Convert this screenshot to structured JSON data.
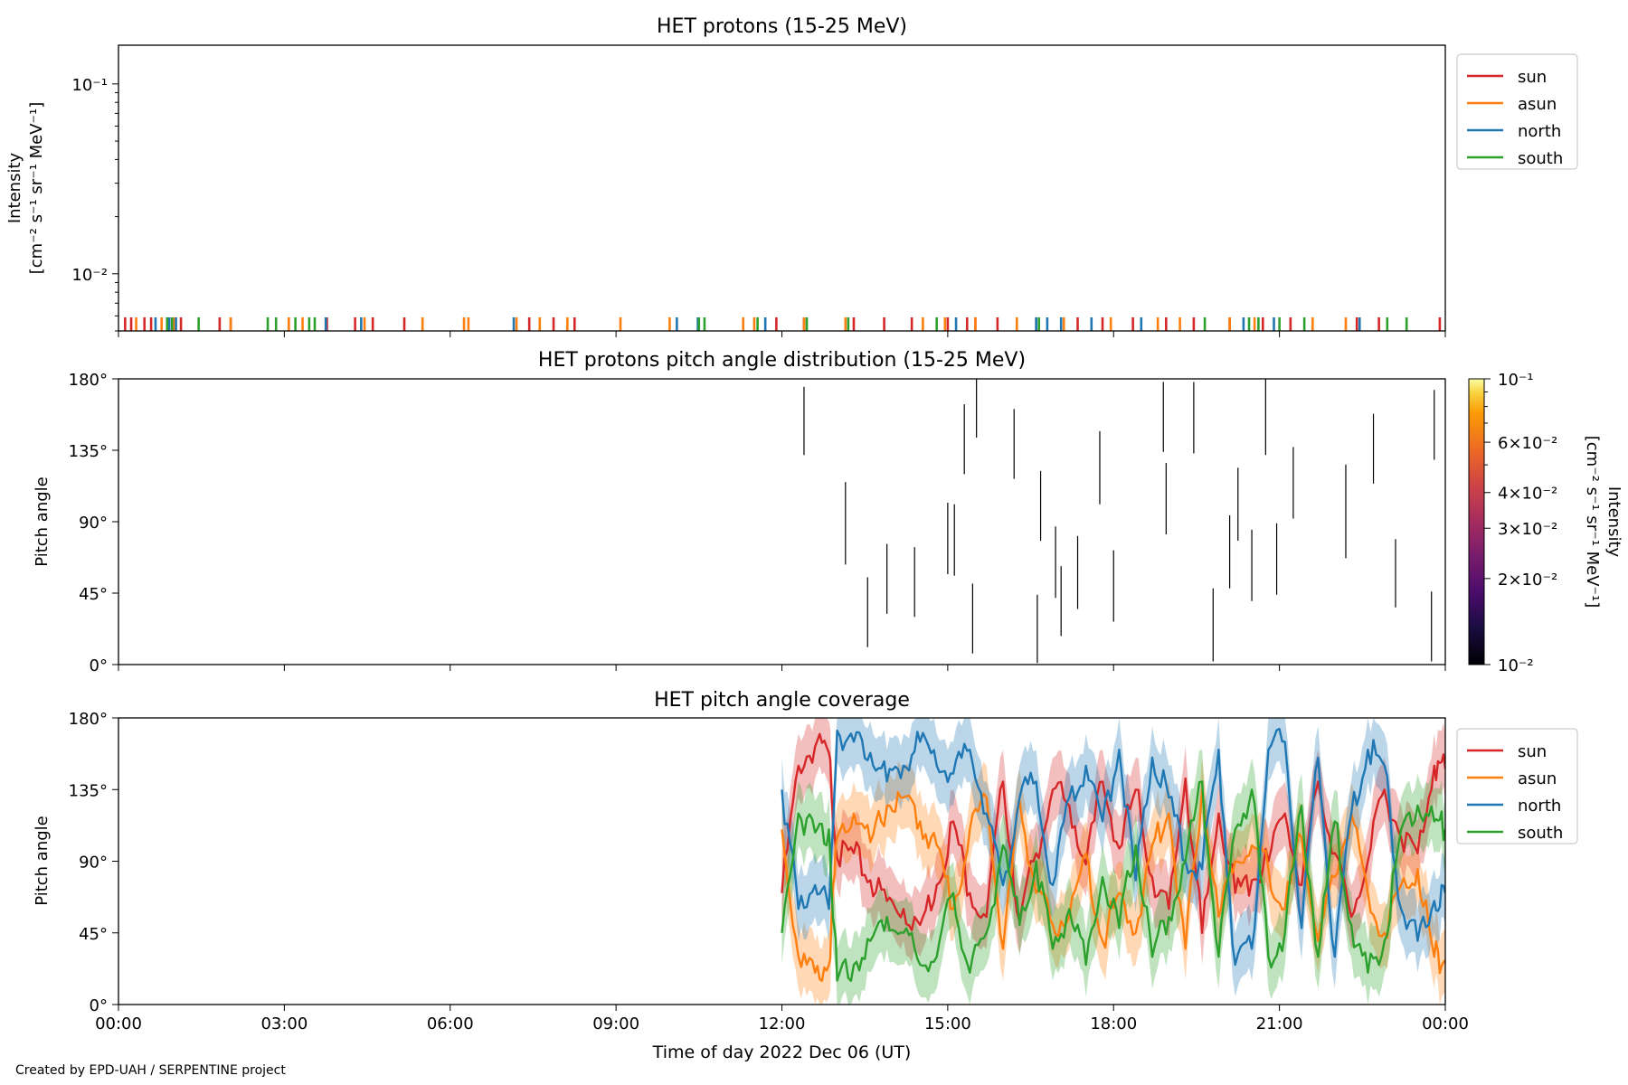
{
  "footer": "Created by EPD-UAH / SERPENTINE project",
  "colors": {
    "sun": "#d62728",
    "asun": "#ff7f0e",
    "north": "#1f77b4",
    "south": "#2ca02c"
  },
  "x_axis": {
    "label": "Time of day 2022 Dec 06 (UT)",
    "ticks": [
      "00:00",
      "03:00",
      "06:00",
      "09:00",
      "12:00",
      "15:00",
      "18:00",
      "21:00",
      "00:00"
    ]
  },
  "chart_data": [
    {
      "type": "line",
      "title": "HET protons (15-25 MeV)",
      "ylabel": "Intensity",
      "yunit": "[cm⁻² s⁻¹ sr⁻¹ MeV⁻¹]",
      "yscale": "log",
      "ylim": [
        0.005,
        0.16
      ],
      "yticks": [
        {
          "label": "10⁻²",
          "value": 0.01
        },
        {
          "label": "10⁻¹",
          "value": 0.1
        }
      ],
      "xlim_hours": [
        0,
        24
      ],
      "legend": {
        "placement": "outside-right-top",
        "entries": [
          "sun",
          "asun",
          "north",
          "south"
        ]
      },
      "note_detail": "Only sparse single-count spikes at the lower edge of the axis",
      "series": [
        {
          "name": "sun",
          "spikes_hours": [
            0.12,
            0.23,
            0.47,
            0.59,
            1.13,
            1.83,
            2.03,
            3.08,
            3.77,
            4.28,
            4.6,
            5.17,
            7.43,
            7.87,
            8.25,
            11.9,
            12.4,
            13.3,
            13.85,
            14.35,
            15.0,
            15.35,
            15.5,
            15.9,
            16.6,
            17.35,
            17.8,
            18.35,
            18.95,
            19.45,
            20.1,
            20.7,
            21.2,
            22.4,
            22.8,
            23.9
          ]
        },
        {
          "name": "asun",
          "spikes_hours": [
            0.32,
            0.78,
            1.0,
            2.03,
            3.08,
            3.33,
            3.75,
            4.45,
            5.5,
            6.25,
            6.33,
            7.2,
            7.62,
            8.12,
            9.08,
            9.97,
            11.3,
            11.5,
            12.4,
            13.15,
            14.55,
            14.95,
            15.5,
            16.25,
            17.1,
            17.95,
            18.8,
            19.2,
            20.1,
            20.55,
            21.6,
            22.2
          ]
        },
        {
          "name": "north",
          "spikes_hours": [
            0.67,
            0.92,
            1.04,
            3.75,
            4.39,
            7.15,
            10.1,
            10.48,
            11.7,
            15.15,
            16.6,
            16.8,
            17.05,
            17.6,
            18.5,
            20.35,
            20.9,
            22.45
          ]
        },
        {
          "name": "south",
          "spikes_hours": [
            0.88,
            0.97,
            1.45,
            2.7,
            2.85,
            3.2,
            3.45,
            3.55,
            10.5,
            10.6,
            11.56,
            12.45,
            13.2,
            14.8,
            16.65,
            19.65,
            20.45,
            20.62,
            21.0,
            21.45,
            22.95,
            23.3
          ]
        }
      ]
    },
    {
      "type": "heatmap",
      "title": "HET protons pitch angle distribution (15-25 MeV)",
      "ylabel": "Pitch angle",
      "ylim": [
        0,
        180
      ],
      "yticks": [
        "0°",
        "45°",
        "90°",
        "135°",
        "180°"
      ],
      "xlim_hours": [
        0,
        24
      ],
      "colorbar": {
        "label": "Intensity",
        "unit": "[cm⁻² s⁻¹ sr⁻¹ MeV⁻¹]",
        "scale": "log",
        "range": [
          0.01,
          0.1
        ],
        "colormap": "inferno",
        "ticks": [
          {
            "label": "10⁻²",
            "value": 0.01
          },
          {
            "label": "2×10⁻²",
            "value": 0.02
          },
          {
            "label": "3×10⁻²",
            "value": 0.03
          },
          {
            "label": "4×10⁻²",
            "value": 0.04
          },
          {
            "label": "6×10⁻²",
            "value": 0.06
          },
          {
            "label": "10⁻¹",
            "value": 0.1
          }
        ]
      },
      "segments": [
        {
          "t": 12.4,
          "pa": [
            132,
            175
          ]
        },
        {
          "t": 13.15,
          "pa": [
            63,
            115
          ]
        },
        {
          "t": 13.55,
          "pa": [
            11,
            55
          ]
        },
        {
          "t": 13.9,
          "pa": [
            32,
            76
          ]
        },
        {
          "t": 14.4,
          "pa": [
            30,
            74
          ]
        },
        {
          "t": 15.0,
          "pa": [
            57,
            102
          ]
        },
        {
          "t": 15.12,
          "pa": [
            56,
            101
          ]
        },
        {
          "t": 15.3,
          "pa": [
            120,
            164
          ]
        },
        {
          "t": 15.45,
          "pa": [
            7,
            51
          ]
        },
        {
          "t": 15.52,
          "pa": [
            143,
            180
          ]
        },
        {
          "t": 16.2,
          "pa": [
            117,
            161
          ]
        },
        {
          "t": 16.62,
          "pa": [
            1,
            44
          ]
        },
        {
          "t": 16.68,
          "pa": [
            78,
            122
          ]
        },
        {
          "t": 16.95,
          "pa": [
            42,
            87
          ]
        },
        {
          "t": 17.05,
          "pa": [
            18,
            62
          ]
        },
        {
          "t": 17.35,
          "pa": [
            35,
            81
          ]
        },
        {
          "t": 17.75,
          "pa": [
            101,
            147
          ]
        },
        {
          "t": 18.0,
          "pa": [
            27,
            72
          ]
        },
        {
          "t": 18.9,
          "pa": [
            134,
            178
          ]
        },
        {
          "t": 18.95,
          "pa": [
            82,
            127
          ]
        },
        {
          "t": 19.45,
          "pa": [
            133,
            178
          ]
        },
        {
          "t": 19.8,
          "pa": [
            2,
            48
          ]
        },
        {
          "t": 20.1,
          "pa": [
            48,
            94
          ]
        },
        {
          "t": 20.25,
          "pa": [
            78,
            124
          ]
        },
        {
          "t": 20.5,
          "pa": [
            40,
            85
          ]
        },
        {
          "t": 20.75,
          "pa": [
            132,
            180
          ]
        },
        {
          "t": 20.95,
          "pa": [
            44,
            89
          ]
        },
        {
          "t": 21.25,
          "pa": [
            92,
            137
          ]
        },
        {
          "t": 22.2,
          "pa": [
            67,
            126
          ]
        },
        {
          "t": 22.7,
          "pa": [
            114,
            158
          ]
        },
        {
          "t": 23.1,
          "pa": [
            36,
            79
          ]
        },
        {
          "t": 23.75,
          "pa": [
            2,
            46
          ]
        },
        {
          "t": 23.8,
          "pa": [
            129,
            173
          ]
        }
      ]
    },
    {
      "type": "line",
      "title": "HET pitch angle coverage",
      "ylabel": "Pitch angle",
      "ylim": [
        0,
        180
      ],
      "yticks": [
        "0°",
        "45°",
        "90°",
        "135°",
        "180°"
      ],
      "xlim_hours": [
        0,
        24
      ],
      "data_start_hours": 12.0,
      "band_halfwidth_deg": 20,
      "legend": {
        "placement": "outside-right-top",
        "entries": [
          "sun",
          "asun",
          "north",
          "south"
        ]
      },
      "series": [
        {
          "name": "sun",
          "x": [
            12.0,
            12.3,
            12.6,
            12.85,
            13.0,
            13.3,
            13.6,
            13.9,
            14.2,
            14.5,
            14.8,
            15.1,
            15.4,
            15.7,
            16.0,
            16.3,
            16.6,
            16.9,
            17.2,
            17.5,
            17.8,
            18.1,
            18.4,
            18.7,
            19.0,
            19.3,
            19.6,
            19.9,
            20.2,
            20.5,
            20.8,
            21.1,
            21.4,
            21.7,
            22.0,
            22.3,
            22.6,
            22.9,
            23.2,
            23.5,
            23.8,
            24.0
          ],
          "y": [
            70,
            150,
            162,
            158,
            92,
            95,
            78,
            65,
            60,
            50,
            75,
            115,
            70,
            55,
            140,
            52,
            95,
            135,
            125,
            88,
            140,
            98,
            135,
            80,
            60,
            142,
            45,
            120,
            70,
            78,
            90,
            120,
            75,
            140,
            95,
            55,
            90,
            135,
            105,
            95,
            150,
            148
          ]
        },
        {
          "name": "asun",
          "x": [
            12.0,
            12.3,
            12.6,
            12.85,
            13.0,
            13.3,
            13.6,
            13.9,
            14.2,
            14.5,
            14.8,
            15.1,
            15.4,
            15.7,
            16.0,
            16.3,
            16.6,
            16.9,
            17.2,
            17.5,
            17.8,
            18.1,
            18.4,
            18.7,
            19.0,
            19.3,
            19.6,
            19.9,
            20.2,
            20.5,
            20.8,
            21.1,
            21.4,
            21.7,
            22.0,
            22.3,
            22.6,
            22.9,
            23.2,
            23.5,
            23.8,
            24.0
          ],
          "y": [
            110,
            30,
            20,
            25,
            105,
            120,
            102,
            125,
            130,
            115,
            100,
            60,
            110,
            130,
            35,
            128,
            70,
            50,
            55,
            95,
            40,
            70,
            45,
            100,
            120,
            35,
            135,
            55,
            90,
            100,
            85,
            60,
            105,
            40,
            80,
            120,
            70,
            45,
            75,
            85,
            30,
            28
          ]
        },
        {
          "name": "north",
          "x": [
            12.0,
            12.3,
            12.6,
            12.85,
            13.0,
            13.3,
            13.6,
            13.9,
            14.2,
            14.5,
            14.8,
            15.1,
            15.4,
            15.7,
            16.0,
            16.3,
            16.6,
            16.9,
            17.2,
            17.5,
            17.8,
            18.1,
            18.4,
            18.7,
            19.0,
            19.3,
            19.6,
            19.9,
            20.2,
            20.5,
            20.8,
            21.1,
            21.4,
            21.7,
            22.0,
            22.3,
            22.6,
            22.9,
            23.2,
            23.5,
            23.8,
            24.0
          ],
          "y": [
            135,
            60,
            75,
            60,
            172,
            165,
            158,
            140,
            150,
            165,
            150,
            145,
            160,
            120,
            75,
            130,
            140,
            75,
            130,
            150,
            115,
            160,
            78,
            155,
            130,
            90,
            85,
            160,
            25,
            35,
            160,
            165,
            48,
            155,
            30,
            120,
            160,
            150,
            60,
            40,
            65,
            70
          ]
        },
        {
          "name": "south",
          "x": [
            12.0,
            12.3,
            12.6,
            12.85,
            13.0,
            13.3,
            13.6,
            13.9,
            14.2,
            14.5,
            14.8,
            15.1,
            15.4,
            15.7,
            16.0,
            16.3,
            16.6,
            16.9,
            17.2,
            17.5,
            17.8,
            18.1,
            18.4,
            18.7,
            19.0,
            19.3,
            19.6,
            19.9,
            20.2,
            20.5,
            20.8,
            21.1,
            21.4,
            21.7,
            22.0,
            22.3,
            22.6,
            22.9,
            23.2,
            23.5,
            23.8,
            24.0
          ],
          "y": [
            45,
            120,
            108,
            110,
            15,
            25,
            40,
            55,
            45,
            25,
            30,
            70,
            20,
            45,
            100,
            50,
            90,
            35,
            60,
            25,
            80,
            48,
            100,
            30,
            55,
            90,
            140,
            30,
            110,
            135,
            30,
            45,
            125,
            30,
            115,
            50,
            20,
            40,
            110,
            125,
            115,
            110
          ]
        }
      ]
    }
  ]
}
